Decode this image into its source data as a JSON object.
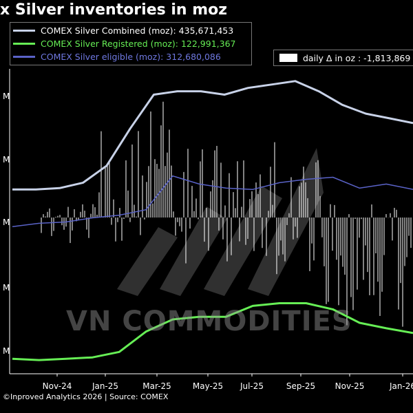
{
  "chart_data": {
    "type": "line",
    "title": "x Silver inventories in moz",
    "x_tick_labels": [
      "Nov-24",
      "Jan-25",
      "Mar-25",
      "May-25",
      "Jul-25",
      "Sep-25",
      "Nov-25",
      "Jan-26"
    ],
    "y_tick_labels": [
      "M",
      "M",
      "M",
      "M",
      "M"
    ],
    "series": [
      {
        "name": "COMEX Silver Combined (moz): 435,671,453",
        "color": "#c8d2e8",
        "points": [
          [
            "Oct-24",
            300
          ],
          [
            "Nov-24",
            300
          ],
          [
            "Dec-24",
            302
          ],
          [
            "Jan-25",
            310
          ],
          [
            "Feb-25",
            335
          ],
          [
            "Mar-25",
            390
          ],
          [
            "Apr-25",
            440
          ],
          [
            "May-25",
            445
          ],
          [
            "Jun-25",
            445
          ],
          [
            "Jul-25",
            440
          ],
          [
            "Aug-25",
            450
          ],
          [
            "Sep-25",
            455
          ],
          [
            "Sep-25b",
            460
          ],
          [
            "Oct-25",
            445
          ],
          [
            "Nov-25",
            425
          ],
          [
            "Dec-25",
            412
          ],
          [
            "Jan-26",
            405
          ],
          [
            "Jan-26b",
            398
          ]
        ]
      },
      {
        "name": "COMEX Silver Registered (moz): 122,991,367",
        "color": "#66ee55",
        "points": [
          [
            "Oct-24",
            50
          ],
          [
            "Nov-24",
            48
          ],
          [
            "Dec-24",
            50
          ],
          [
            "Jan-25",
            52
          ],
          [
            "Feb-25",
            60
          ],
          [
            "Mar-25",
            90
          ],
          [
            "Apr-25",
            108
          ],
          [
            "May-25",
            112
          ],
          [
            "Jun-25",
            112
          ],
          [
            "Jul-25",
            128
          ],
          [
            "Aug-25",
            132
          ],
          [
            "Sep-25",
            132
          ],
          [
            "Oct-25",
            123
          ],
          [
            "Nov-25",
            103
          ],
          [
            "Dec-25",
            95
          ],
          [
            "Jan-26",
            88
          ]
        ]
      },
      {
        "name": "COMEX Silver eligible (moz): 312,680,086",
        "color": "#5a63c8",
        "points": [
          [
            "Oct-24",
            245
          ],
          [
            "Nov-24",
            250
          ],
          [
            "Dec-24",
            252
          ],
          [
            "Jan-25",
            258
          ],
          [
            "Feb-25",
            262
          ],
          [
            "Mar-25",
            270
          ],
          [
            "Apr-25",
            320
          ],
          [
            "May-25",
            308
          ],
          [
            "Jun-25",
            302
          ],
          [
            "Jul-25",
            300
          ],
          [
            "Aug-25",
            310
          ],
          [
            "Sep-25",
            315
          ],
          [
            "Oct-25",
            318
          ],
          [
            "Nov-25",
            302
          ],
          [
            "Dec-25",
            308
          ],
          [
            "Jan-26",
            300
          ]
        ]
      }
    ],
    "bars": {
      "name": "daily Δ in oz : -1,813,869",
      "color": "#ffffff"
    },
    "grid": false,
    "legend": "top-left"
  },
  "watermark": "VN COMMODITIES",
  "source": "©Inproved Analytics 2026 | Source: COMEX"
}
